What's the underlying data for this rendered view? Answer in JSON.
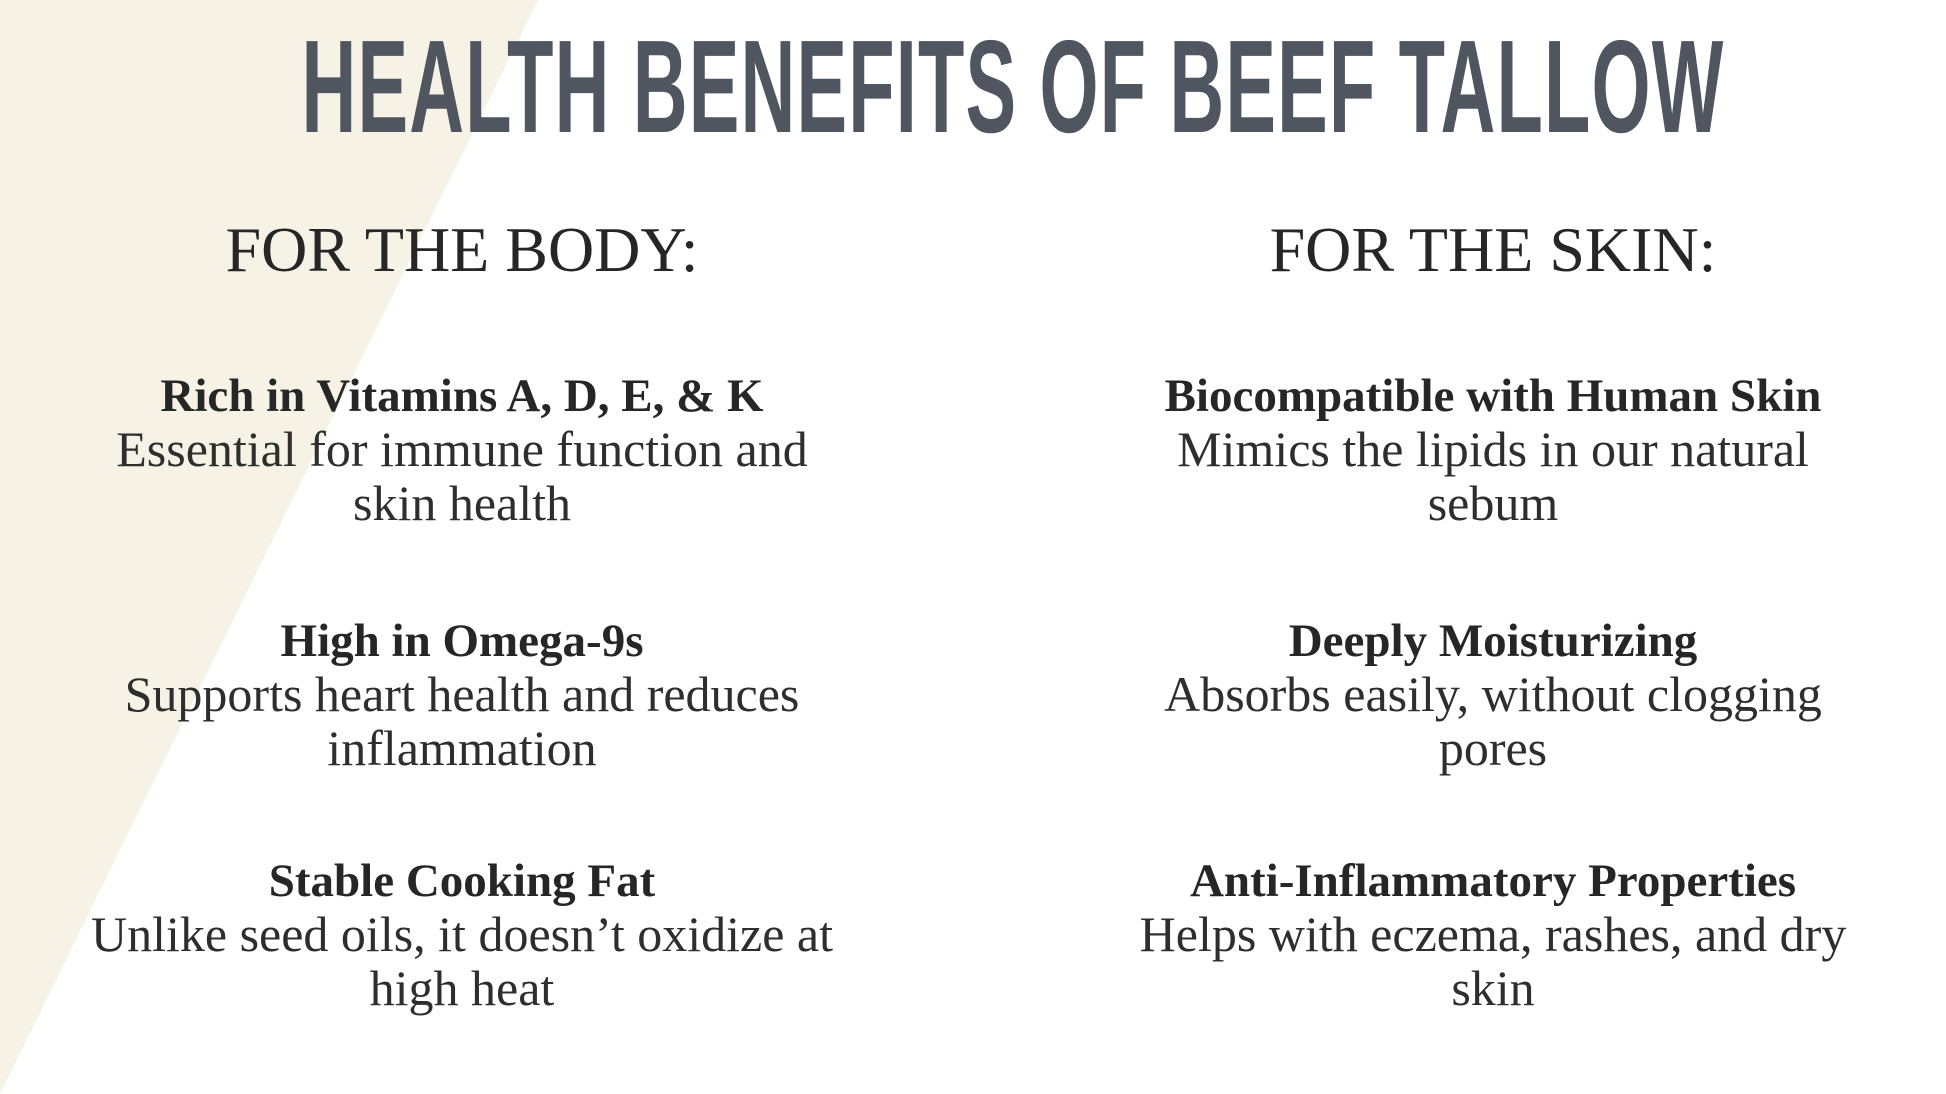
{
  "colors": {
    "title": "#4f5660",
    "text": "#262626",
    "accent_background": "#f6f3e6",
    "background": "#ffffff"
  },
  "title": "HEALTH BENEFITS OF BEEF TALLOW",
  "body": {
    "heading": "FOR THE BODY:",
    "items": [
      {
        "title": "Rich in Vitamins A, D, E, & K",
        "desc_lines": [
          "Essential for immune function and",
          "skin health"
        ]
      },
      {
        "title": "High in Omega-9s",
        "desc_lines": [
          "Supports heart health and reduces",
          "inflammation"
        ]
      },
      {
        "title": "Stable Cooking Fat",
        "desc_lines": [
          "Unlike seed oils, it doesn’t oxidize at",
          "high heat"
        ]
      }
    ]
  },
  "skin": {
    "heading": "FOR THE SKIN:",
    "items": [
      {
        "title": "Biocompatible with Human Skin",
        "desc_lines": [
          "Mimics the lipids in our natural",
          "sebum"
        ]
      },
      {
        "title": "Deeply Moisturizing",
        "desc_lines": [
          "Absorbs easily, without clogging",
          "pores"
        ]
      },
      {
        "title": "Anti-Inflammatory Properties",
        "desc_lines": [
          "Helps with eczema, rashes, and dry",
          "skin"
        ]
      }
    ]
  }
}
